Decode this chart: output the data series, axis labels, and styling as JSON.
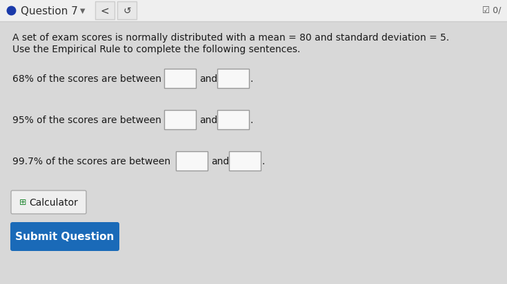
{
  "bg_color": "#d8d8d8",
  "header_bg": "#efefef",
  "header_text": "Question 7",
  "header_text_color": "#333333",
  "body_bg": "#f0f0f0",
  "line1": "A set of exam scores is normally distributed with a mean = 80 and standard deviation = 5.",
  "line2": "Use the Empirical Rule to complete the following sentences.",
  "row1_label": "68% of the scores are between",
  "row2_label": "95% of the scores are between",
  "row3_label": "99.7% of the scores are between",
  "and_text": "and",
  "period": ".",
  "calc_label": " Calculator",
  "submit_label": "Submit Question",
  "submit_bg": "#1a6ab8",
  "submit_text_color": "#ffffff",
  "text_color": "#1a1a1a",
  "box_color": "#f8f8f8",
  "box_border": "#999999",
  "calc_bg": "#efefef",
  "calc_border": "#aaaaaa",
  "header_dot_color": "#1a3aaa",
  "header_separator": "#cccccc",
  "nav_button_bg": "#e8e8e8",
  "nav_button_border": "#cccccc"
}
